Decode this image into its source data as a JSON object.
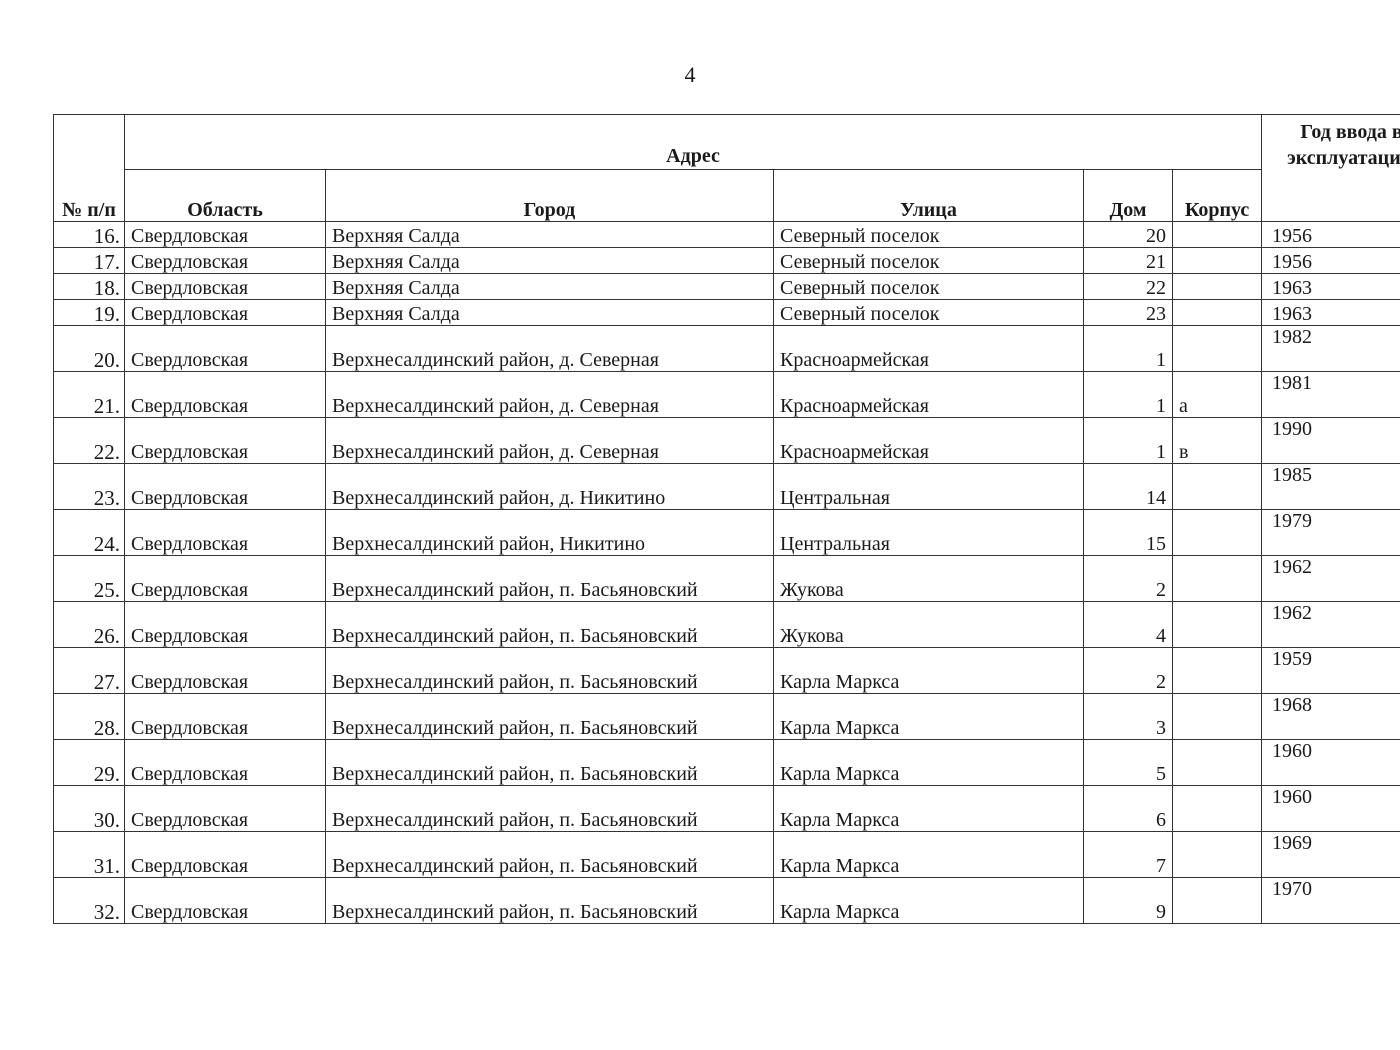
{
  "page_number": "4",
  "headers": {
    "num": "№ п/п",
    "address": "Адрес",
    "region": "Область",
    "city": "Город",
    "street": "Улица",
    "house": "Дом",
    "building": "Корпус",
    "year": "Год ввода в эксплуатацию"
  },
  "rows": [
    {
      "num": "16.",
      "region": "Свердловская",
      "city": "Верхняя Салда",
      "street": "Северный поселок",
      "house": "20",
      "building": "",
      "year": "1956"
    },
    {
      "num": "17.",
      "region": "Свердловская",
      "city": "Верхняя Салда",
      "street": "Северный поселок",
      "house": "21",
      "building": "",
      "year": "1956"
    },
    {
      "num": "18.",
      "region": "Свердловская",
      "city": "Верхняя Салда",
      "street": "Северный поселок",
      "house": "22",
      "building": "",
      "year": "1963"
    },
    {
      "num": "19.",
      "region": "Свердловская",
      "city": "Верхняя Салда",
      "street": "Северный поселок",
      "house": "23",
      "building": "",
      "year": "1963"
    },
    {
      "num": "20.",
      "region": "Свердловская",
      "city": "Верхнесалдинский район, д. Северная",
      "street": "Красноармейская",
      "house": "1",
      "building": "",
      "year": "1982"
    },
    {
      "num": "21.",
      "region": "Свердловская",
      "city": "Верхнесалдинский район, д. Северная",
      "street": "Красноармейская",
      "house": "1",
      "building": "а",
      "year": "1981"
    },
    {
      "num": "22.",
      "region": "Свердловская",
      "city": "Верхнесалдинский район, д. Северная",
      "street": "Красноармейская",
      "house": "1",
      "building": "в",
      "year": "1990"
    },
    {
      "num": "23.",
      "region": "Свердловская",
      "city": "Верхнесалдинский район, д. Никитино",
      "street": "Центральная",
      "house": "14",
      "building": "",
      "year": "1985"
    },
    {
      "num": "24.",
      "region": "Свердловская",
      "city": "Верхнесалдинский район, Никитино",
      "street": "Центральная",
      "house": "15",
      "building": "",
      "year": "1979"
    },
    {
      "num": "25.",
      "region": "Свердловская",
      "city": "Верхнесалдинский район, п. Басьяновский",
      "street": "Жукова",
      "house": "2",
      "building": "",
      "year": "1962"
    },
    {
      "num": "26.",
      "region": "Свердловская",
      "city": "Верхнесалдинский район, п. Басьяновский",
      "street": "Жукова",
      "house": "4",
      "building": "",
      "year": "1962"
    },
    {
      "num": "27.",
      "region": "Свердловская",
      "city": "Верхнесалдинский район, п. Басьяновский",
      "street": "Карла Маркса",
      "house": "2",
      "building": "",
      "year": "1959"
    },
    {
      "num": "28.",
      "region": "Свердловская",
      "city": "Верхнесалдинский район, п. Басьяновский",
      "street": "Карла Маркса",
      "house": "3",
      "building": "",
      "year": "1968"
    },
    {
      "num": "29.",
      "region": "Свердловская",
      "city": "Верхнесалдинский район, п. Басьяновский",
      "street": "Карла Маркса",
      "house": "5",
      "building": "",
      "year": "1960"
    },
    {
      "num": "30.",
      "region": "Свердловская",
      "city": "Верхнесалдинский район, п. Басьяновский",
      "street": "Карла Маркса",
      "house": "6",
      "building": "",
      "year": "1960"
    },
    {
      "num": "31.",
      "region": "Свердловская",
      "city": "Верхнесалдинский район, п. Басьяновский",
      "street": "Карла Маркса",
      "house": "7",
      "building": "",
      "year": "1969"
    },
    {
      "num": "32.",
      "region": "Свердловская",
      "city": "Верхнесалдинский район, п. Басьяновский",
      "street": "Карла Маркса",
      "house": "9",
      "building": "",
      "year": "1970"
    }
  ]
}
